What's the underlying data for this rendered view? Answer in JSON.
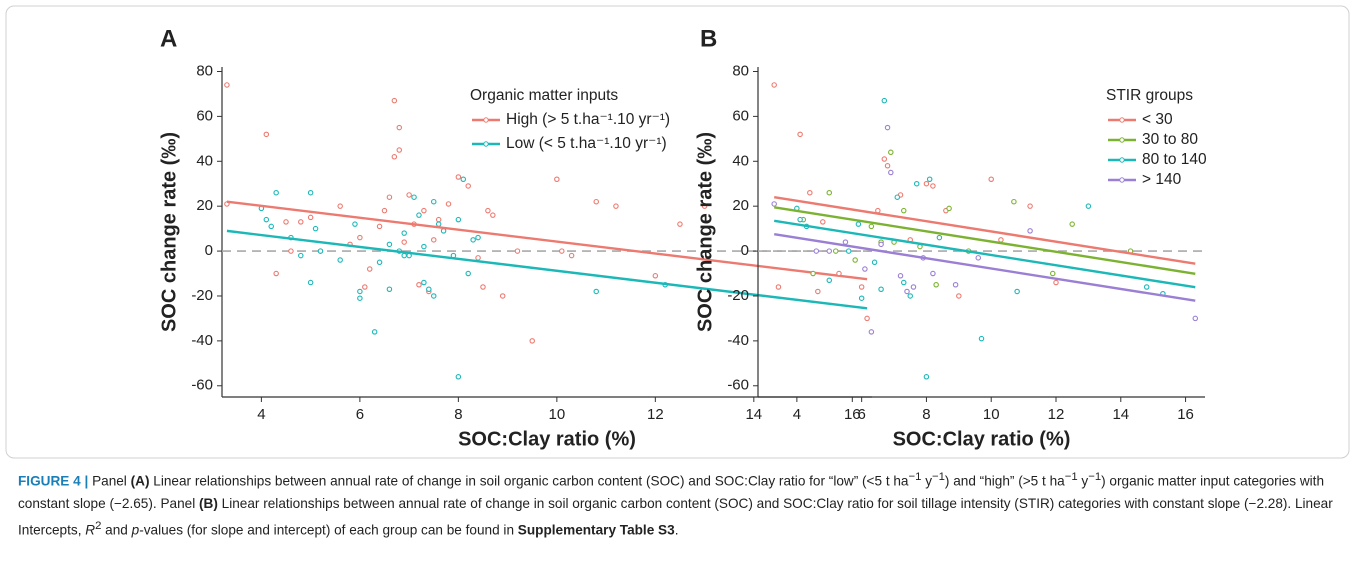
{
  "chart_data": [
    {
      "type": "scatter",
      "panel": "A",
      "xlabel": "SOC:Clay ratio (%)",
      "ylabel": "SOC change rate (‰)",
      "legend_title": "Organic matter inputs",
      "hline": 0,
      "xlim": [
        3.2,
        16.4
      ],
      "ylim": [
        -65,
        82
      ],
      "xticks": [
        4,
        6,
        8,
        10,
        12,
        14,
        16
      ],
      "yticks": [
        -60,
        -40,
        -20,
        0,
        20,
        40,
        60,
        80
      ],
      "series": [
        {
          "name": "High (> 5 t.ha⁻¹.10 yr⁻¹)",
          "color": "#ec7a70",
          "x": [
            3.3,
            3.3,
            4.1,
            4.3,
            4.5,
            4.6,
            4.8,
            5.0,
            5.2,
            5.6,
            5.8,
            6.0,
            6.1,
            6.2,
            6.4,
            6.5,
            6.6,
            6.7,
            6.7,
            6.8,
            6.8,
            6.9,
            7.0,
            7.1,
            7.2,
            7.3,
            7.4,
            7.5,
            7.6,
            7.8,
            8.0,
            8.2,
            8.4,
            8.5,
            8.6,
            8.7,
            8.9,
            9.5,
            10.0,
            10.1,
            10.8,
            11.2,
            12.0,
            12.5,
            13.0,
            14.5,
            15.3,
            16.3,
            9.2,
            10.3
          ],
          "values": [
            74,
            21,
            52,
            -10,
            13,
            0,
            13,
            15,
            0,
            20,
            3,
            6,
            -16,
            -8,
            11,
            18,
            24,
            42,
            67,
            55,
            45,
            4,
            25,
            12,
            -15,
            18,
            -18,
            5,
            14,
            21,
            33,
            29,
            -3,
            -16,
            18,
            16,
            -20,
            -40,
            32,
            0,
            22,
            20,
            -11,
            12,
            20,
            -16,
            -18,
            -30,
            0,
            -2
          ],
          "fit": {
            "x": [
              3.3,
              16.3
            ],
            "values": [
              22,
              -12.5
            ]
          }
        },
        {
          "name": "Low (< 5 t.ha⁻¹.10 yr⁻¹)",
          "color": "#1cb8b8",
          "x": [
            4.0,
            4.1,
            4.3,
            4.2,
            4.6,
            4.8,
            5.0,
            5.0,
            5.1,
            5.2,
            5.6,
            5.9,
            6.0,
            6.0,
            6.3,
            6.4,
            6.6,
            6.6,
            6.8,
            6.9,
            7.0,
            7.1,
            7.2,
            7.3,
            7.3,
            7.4,
            7.5,
            7.6,
            7.7,
            8.0,
            8.1,
            8.2,
            8.3,
            8.4,
            8.0,
            7.9,
            10.8,
            12.2,
            7.5,
            6.9
          ],
          "values": [
            19,
            14,
            26,
            11,
            6,
            -2,
            26,
            -14,
            10,
            0,
            -4,
            12,
            -18,
            -21,
            -36,
            -5,
            3,
            -17,
            0,
            -2,
            -2,
            24,
            16,
            -14,
            2,
            -17,
            -20,
            12,
            9,
            -56,
            32,
            -10,
            5,
            6,
            14,
            -2,
            -18,
            -15,
            22,
            8
          ],
          "fit": {
            "x": [
              3.3,
              16.3
            ],
            "values": [
              9,
              -25.5
            ]
          }
        }
      ]
    },
    {
      "type": "scatter",
      "panel": "B",
      "xlabel": "SOC:Clay ratio (%)",
      "ylabel": "SOC change rate (‰)",
      "legend_title": "STIR groups",
      "hline": 0,
      "xlim": [
        2.8,
        16.6
      ],
      "ylim": [
        -65,
        82
      ],
      "xticks": [
        4,
        6,
        8,
        10,
        12,
        14,
        16
      ],
      "yticks": [
        -60,
        -40,
        -20,
        0,
        20,
        40,
        60,
        80
      ],
      "series": [
        {
          "name": "< 30",
          "color": "#ec7a70",
          "x": [
            3.3,
            4.1,
            4.4,
            4.8,
            5.3,
            6.0,
            6.5,
            6.7,
            6.8,
            7.2,
            7.5,
            8.0,
            8.2,
            8.6,
            9.0,
            10.0,
            10.3,
            11.2,
            12.0
          ],
          "values": [
            74,
            52,
            26,
            13,
            -10,
            -16,
            18,
            41,
            38,
            25,
            5,
            30,
            29,
            18,
            -20,
            32,
            5,
            20,
            -14
          ],
          "fit": {
            "x": [
              3.3,
              16.3
            ],
            "values": [
              24,
              -5.6
            ]
          }
        },
        {
          "name": "30 to 80",
          "color": "#7cb231",
          "x": [
            4.2,
            4.5,
            5.0,
            5.2,
            5.8,
            6.3,
            6.6,
            6.9,
            7.0,
            7.3,
            7.8,
            8.3,
            8.7,
            9.3,
            10.7,
            11.9,
            12.5,
            14.3
          ],
          "values": [
            14,
            -10,
            26,
            0,
            -4,
            11,
            4,
            44,
            4,
            18,
            2,
            -15,
            19,
            0,
            22,
            -10,
            12,
            0
          ],
          "fit": {
            "x": [
              3.3,
              16.3
            ],
            "values": [
              19.5,
              -10.1
            ]
          }
        },
        {
          "name": "80 to 140",
          "color": "#1cb8b8",
          "x": [
            4.0,
            4.1,
            4.3,
            5.0,
            5.6,
            5.9,
            6.0,
            6.4,
            6.6,
            6.7,
            7.1,
            7.3,
            7.5,
            7.7,
            8.0,
            8.1,
            8.4,
            9.7,
            10.8,
            13.0,
            14.8,
            15.3
          ],
          "values": [
            19,
            14,
            11,
            -13,
            0,
            12,
            -21,
            -5,
            -17,
            67,
            24,
            -14,
            -20,
            30,
            -56,
            32,
            6,
            -39,
            -18,
            20,
            -16,
            -19
          ],
          "fit": {
            "x": [
              3.3,
              16.3
            ],
            "values": [
              13.5,
              -16.1
            ]
          }
        },
        {
          "name": "> 140",
          "color": "#9a7fd4",
          "x": [
            3.3,
            4.6,
            5.0,
            5.5,
            6.1,
            6.3,
            6.6,
            6.8,
            6.9,
            7.2,
            7.4,
            7.6,
            7.9,
            8.2,
            8.9,
            9.6,
            11.2,
            16.3
          ],
          "values": [
            21,
            0,
            0,
            4,
            -8,
            -36,
            3,
            55,
            35,
            -11,
            -18,
            -16,
            -3,
            -10,
            -15,
            -3,
            9,
            -30
          ],
          "fit": {
            "x": [
              3.3,
              16.3
            ],
            "values": [
              7.5,
              -22.1
            ]
          }
        }
      ]
    }
  ],
  "caption": [
    {
      "text": "FIGURE 4 | ",
      "bold": true
    },
    {
      "text": "Panel "
    },
    {
      "text": "(A)",
      "bold": true
    },
    {
      "text": " Linear relationships between annual rate of change in soil organic carbon content (SOC) and SOC:Clay ratio for “low” (<5 t ha"
    },
    {
      "text": "−1",
      "sup": true
    },
    {
      "text": " y"
    },
    {
      "text": "−1",
      "sup": true
    },
    {
      "text": ") and “high” (>5 t ha"
    },
    {
      "text": "−1",
      "sup": true
    },
    {
      "text": " y"
    },
    {
      "text": "−1",
      "sup": true
    },
    {
      "text": ") organic matter input categories with constant slope (−2.65). Panel "
    },
    {
      "text": "(B)",
      "bold": true
    },
    {
      "text": " Linear relationships between annual rate of change in soil organic carbon content (SOC) and SOC:Clay ratio for soil tillage intensity (STIR) categories with constant slope (−2.28). Linear Intercepts, "
    },
    {
      "text": "R",
      "italic": true
    },
    {
      "text": "2",
      "sup": true
    },
    {
      "text": " and "
    },
    {
      "text": "p",
      "italic": true
    },
    {
      "text": "-values (for slope and intercept) of each group can be found in "
    },
    {
      "text": "Supplementary Table S3",
      "bold": true
    },
    {
      "text": "."
    }
  ]
}
